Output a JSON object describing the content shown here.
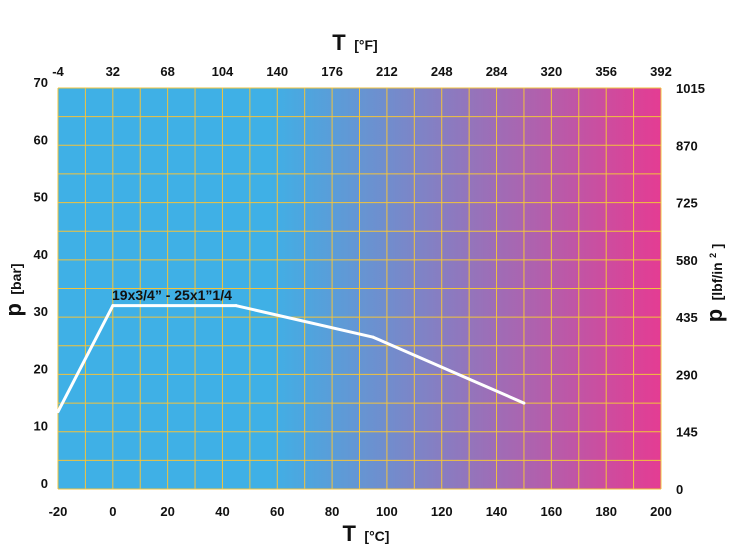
{
  "chart_data": {
    "type": "line",
    "x_axis_bottom": {
      "label_main": "T",
      "label_unit": "[°C]",
      "ticks": [
        "-20",
        "0",
        "20",
        "40",
        "60",
        "80",
        "100",
        "120",
        "140",
        "160",
        "180",
        "200"
      ],
      "range": [
        -20,
        200
      ]
    },
    "x_axis_top": {
      "label_main": "T",
      "label_unit": "[°F]",
      "ticks": [
        "-4",
        "32",
        "68",
        "104",
        "140",
        "176",
        "212",
        "248",
        "284",
        "320",
        "356",
        "392"
      ],
      "range": [
        -4,
        392
      ]
    },
    "y_axis_left": {
      "label_main": "p",
      "label_unit": "[bar]",
      "ticks": [
        "0",
        "10",
        "20",
        "30",
        "40",
        "50",
        "60",
        "70"
      ],
      "range": [
        0,
        70
      ]
    },
    "y_axis_right": {
      "label_main": "p",
      "label_unit": "[lbf/in",
      "label_sup": "2",
      "label_close": "]",
      "ticks": [
        "0",
        "145",
        "290",
        "435",
        "580",
        "725",
        "870",
        "1015"
      ],
      "range": [
        0,
        1015
      ]
    },
    "grid": true,
    "gradient": {
      "from": "#3fb0e6",
      "to": "#e43c93"
    },
    "grid_color": "#f2c33c",
    "line_color": "#ffffff",
    "annotation": "19x3/4” - 25x1”1/4",
    "series": [
      {
        "x": [
          -20,
          0,
          45,
          95,
          150
        ],
        "y": [
          13.5,
          32,
          32,
          26.5,
          15
        ]
      }
    ]
  }
}
